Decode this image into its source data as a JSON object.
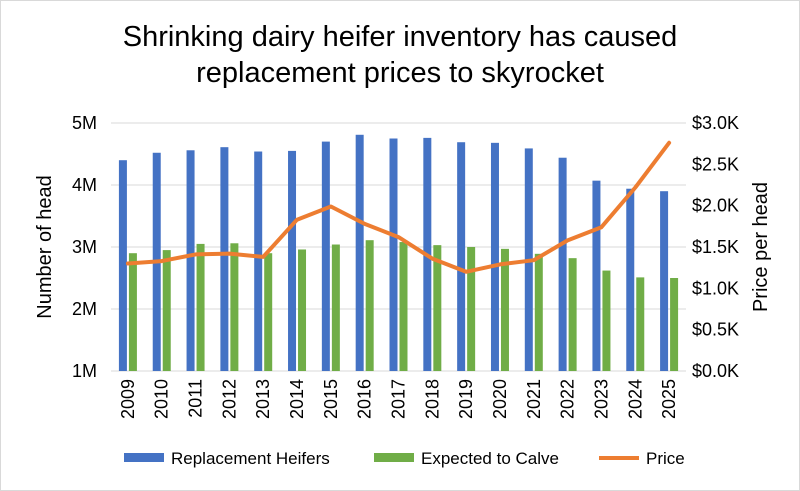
{
  "chart_data": {
    "type": "bar",
    "title": "Shrinking dairy heifer inventory has caused replacement prices to skyrocket",
    "title_lines": [
      "Shrinking dairy heifer inventory has caused",
      "replacement prices to skyrocket"
    ],
    "categories": [
      "2009",
      "2010",
      "2011",
      "2012",
      "2013",
      "2014",
      "2015",
      "2016",
      "2017",
      "2018",
      "2019",
      "2020",
      "2021",
      "2022",
      "2023",
      "2024",
      "2025"
    ],
    "series": [
      {
        "name": "Replacement Heifers",
        "type": "bar",
        "axis": "left",
        "color": "#4472C4",
        "values": [
          4.4,
          4.52,
          4.56,
          4.61,
          4.54,
          4.55,
          4.7,
          4.81,
          4.75,
          4.76,
          4.69,
          4.68,
          4.59,
          4.44,
          4.07,
          3.94,
          3.9
        ]
      },
      {
        "name": "Expected to Calve",
        "type": "bar",
        "axis": "left",
        "color": "#70AD47",
        "values": [
          2.9,
          2.95,
          3.05,
          3.06,
          2.9,
          2.96,
          3.04,
          3.11,
          3.08,
          3.03,
          3.0,
          2.97,
          2.89,
          2.82,
          2.62,
          2.51,
          2.5
        ]
      },
      {
        "name": "Price",
        "type": "line",
        "axis": "right",
        "color": "#ED7D31",
        "values": [
          1300,
          1330,
          1410,
          1420,
          1380,
          1830,
          1990,
          1780,
          1620,
          1360,
          1200,
          1290,
          1340,
          1580,
          1740,
          2220,
          2760
        ]
      }
    ],
    "ylabel": "Number of head",
    "y2label": "Price per head",
    "ylim": [
      1,
      5
    ],
    "y2lim": [
      0,
      3000
    ],
    "yticks": [
      "1M",
      "2M",
      "3M",
      "4M",
      "5M"
    ],
    "y2ticks": [
      "$0.0K",
      "$0.5K",
      "$1.0K",
      "$1.5K",
      "$2.0K",
      "$2.5K",
      "$3.0K"
    ],
    "grid": true,
    "legend": "bottom"
  }
}
